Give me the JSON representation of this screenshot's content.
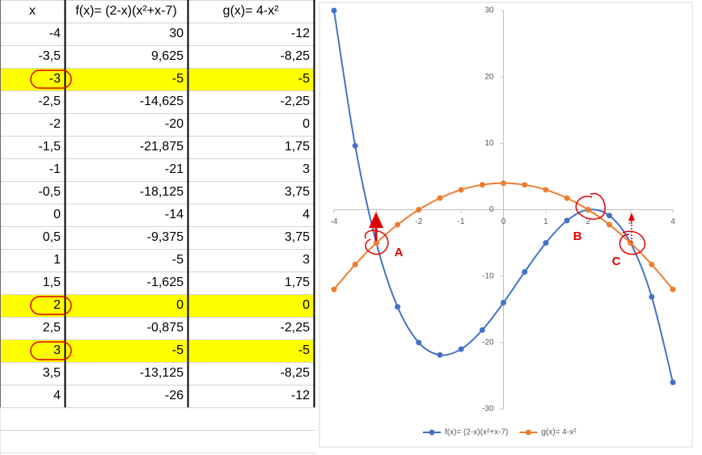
{
  "table": {
    "header": [
      "x",
      "f(x)= (2-x)(x²+x-7)",
      "g(x)= 4-x²"
    ],
    "rows": [
      [
        "-4",
        "30",
        "-12"
      ],
      [
        "-3,5",
        "9,625",
        "-8,25"
      ],
      [
        "-3",
        "-5",
        "-5"
      ],
      [
        "-2,5",
        "-14,625",
        "-2,25"
      ],
      [
        "-2",
        "-20",
        "0"
      ],
      [
        "-1,5",
        "-21,875",
        "1,75"
      ],
      [
        "-1",
        "-21",
        "3"
      ],
      [
        "-0,5",
        "-18,125",
        "3,75"
      ],
      [
        "0",
        "-14",
        "4"
      ],
      [
        "0,5",
        "-9,375",
        "3,75"
      ],
      [
        "1",
        "-5",
        "3"
      ],
      [
        "1,5",
        "-1,625",
        "1,75"
      ],
      [
        "2",
        "0",
        "0"
      ],
      [
        "2,5",
        "-0,875",
        "-2,25"
      ],
      [
        "3",
        "-5",
        "-5"
      ],
      [
        "3,5",
        "-13,125",
        "-8,25"
      ],
      [
        "4",
        "-26",
        "-12"
      ]
    ],
    "highlighted_rows": [
      2,
      12,
      14
    ]
  },
  "chart_data": {
    "type": "line",
    "x": [
      -4,
      -3.5,
      -3,
      -2.5,
      -2,
      -1.5,
      -1,
      -0.5,
      0,
      0.5,
      1,
      1.5,
      2,
      2.5,
      3,
      3.5,
      4
    ],
    "series": [
      {
        "name": "f(x)= (2-x)(x²+x-7)",
        "color": "#4472c4",
        "values": [
          30,
          9.625,
          -5,
          -14.625,
          -20,
          -21.875,
          -21,
          -18.125,
          -14,
          -9.375,
          -5,
          -1.625,
          0,
          -0.875,
          -5,
          -13.125,
          -26
        ]
      },
      {
        "name": "g(x)= 4-x²",
        "color": "#ed7d31",
        "values": [
          -12,
          -8.25,
          -5,
          -2.25,
          0,
          1.75,
          3,
          3.75,
          4,
          3.75,
          3,
          1.75,
          0,
          -2.25,
          -5,
          -8.25,
          -12
        ]
      }
    ],
    "xlim": [
      -4,
      4
    ],
    "xticks": [
      -4,
      -3,
      -2,
      -1,
      0,
      1,
      2,
      3,
      4
    ],
    "ylim": [
      -30,
      30
    ],
    "yticks": [
      -30,
      -20,
      -10,
      0,
      10,
      20,
      30
    ],
    "legend": "bottom",
    "smooth": true,
    "annotations": [
      "A",
      "B",
      "C"
    ]
  }
}
